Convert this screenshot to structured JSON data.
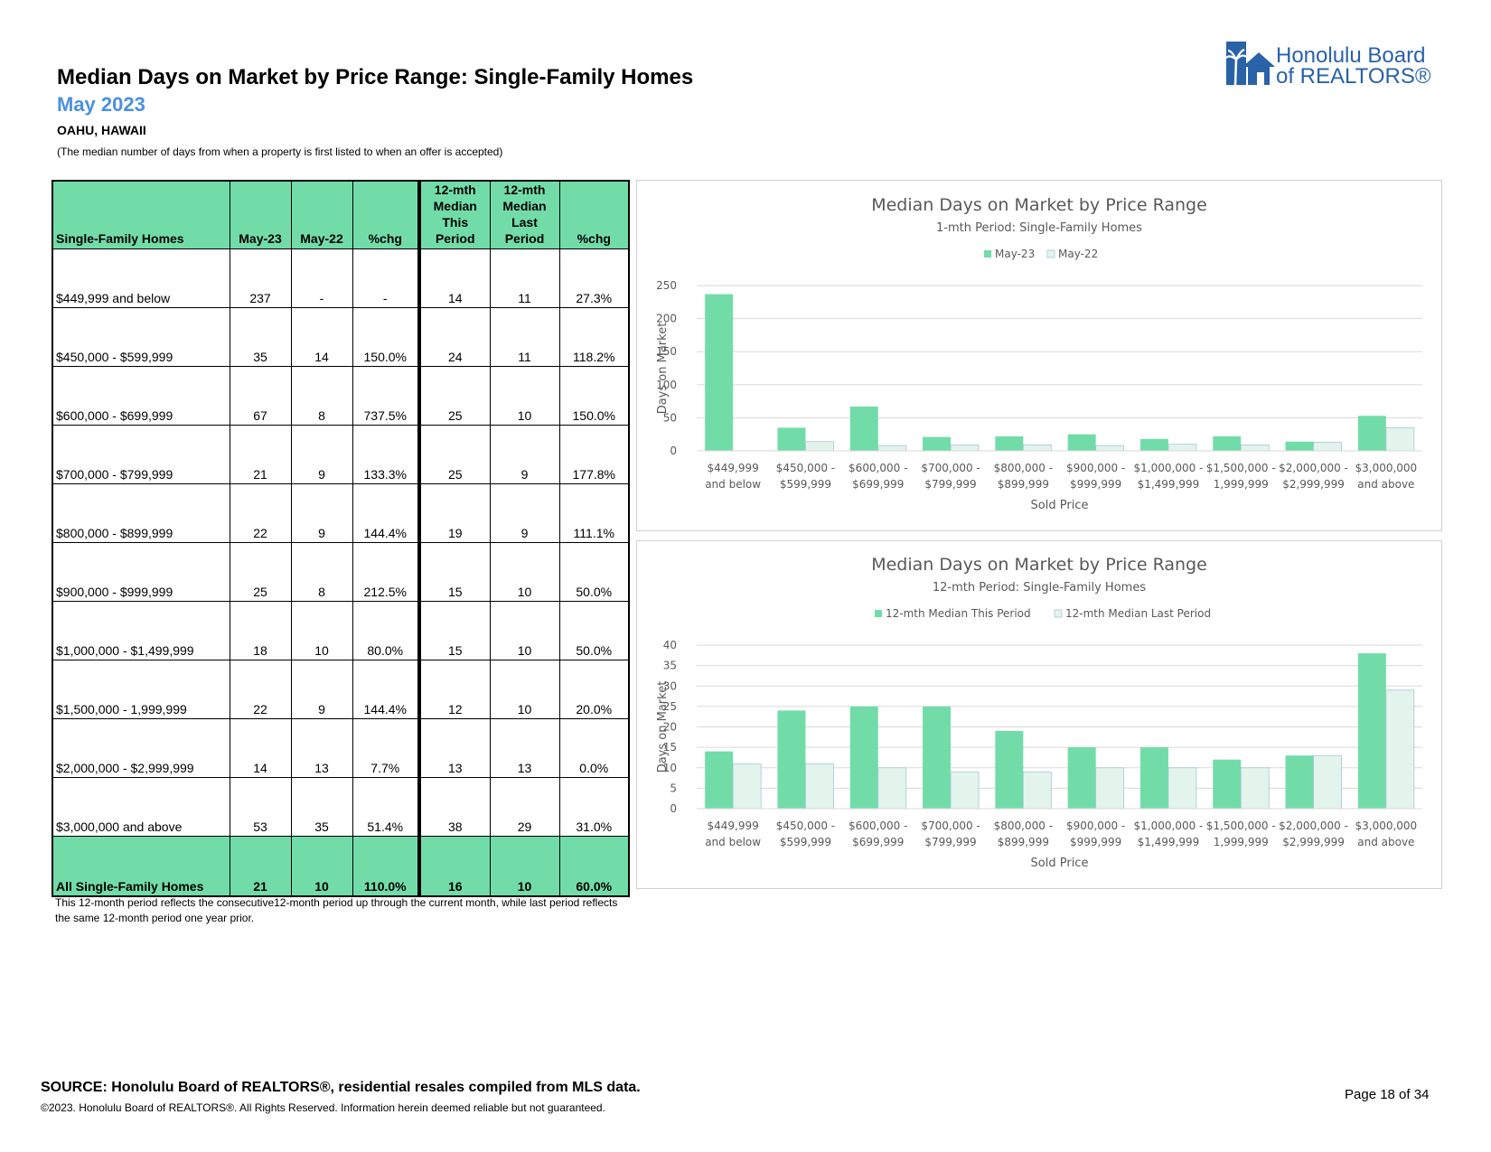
{
  "header": {
    "title": "Median Days on Market by Price Range: Single-Family Homes",
    "subtitle": "May 2023",
    "location": "OAHU, HAWAII",
    "description": "(The median number of days from when a property is first listed to when an offer is accepted)"
  },
  "logo": {
    "line1": "Honolulu Board",
    "line2": "of REALTORS®"
  },
  "table": {
    "headers": [
      "Single-Family Homes",
      "May-23",
      "May-22",
      "%chg",
      "12-mth Median This Period",
      "12-mth Median Last Period",
      "%chg"
    ],
    "rows": [
      [
        "$449,999 and below",
        "237",
        "-",
        "-",
        "14",
        "11",
        "27.3%"
      ],
      [
        "$450,000 - $599,999",
        "35",
        "14",
        "150.0%",
        "24",
        "11",
        "118.2%"
      ],
      [
        "$600,000 - $699,999",
        "67",
        "8",
        "737.5%",
        "25",
        "10",
        "150.0%"
      ],
      [
        "$700,000 - $799,999",
        "21",
        "9",
        "133.3%",
        "25",
        "9",
        "177.8%"
      ],
      [
        "$800,000 - $899,999",
        "22",
        "9",
        "144.4%",
        "19",
        "9",
        "111.1%"
      ],
      [
        "$900,000 - $999,999",
        "25",
        "8",
        "212.5%",
        "15",
        "10",
        "50.0%"
      ],
      [
        "$1,000,000 - $1,499,999",
        "18",
        "10",
        "80.0%",
        "15",
        "10",
        "50.0%"
      ],
      [
        "$1,500,000 - 1,999,999",
        "22",
        "9",
        "144.4%",
        "12",
        "10",
        "20.0%"
      ],
      [
        "$2,000,000 - $2,999,999",
        "14",
        "13",
        "7.7%",
        "13",
        "13",
        "0.0%"
      ],
      [
        "$3,000,000 and above",
        "53",
        "35",
        "51.4%",
        "38",
        "29",
        "31.0%"
      ]
    ],
    "total": [
      "All Single-Family Homes",
      "21",
      "10",
      "110.0%",
      "16",
      "10",
      "60.0%"
    ]
  },
  "footnote": "This 12-month period reflects the consecutive12-month period up through the current month, while last period reflects the same 12-month period one year prior.",
  "colors": {
    "accent": "#72dca9",
    "light_bar": "#e2f4ec",
    "light_bar_border": "#a9c6d8",
    "subtitle": "#4a90e2",
    "logo": "#2a62a8"
  },
  "chart_data": [
    {
      "type": "bar",
      "title": "Median Days on Market by Price Range",
      "subtitle": "1-mth Period: Single-Family Homes",
      "xlabel": "Sold Price",
      "ylabel": "Days on Market",
      "ylim": [
        0,
        250
      ],
      "yticks": [
        0,
        50,
        100,
        150,
        200,
        250
      ],
      "legend_position": "top",
      "categories": [
        [
          "$449,999",
          "and below"
        ],
        [
          "$450,000 -",
          "$599,999"
        ],
        [
          "$600,000 -",
          "$699,999"
        ],
        [
          "$700,000 -",
          "$799,999"
        ],
        [
          "$800,000 -",
          "$899,999"
        ],
        [
          "$900,000 -",
          "$999,999"
        ],
        [
          "$1,000,000 -",
          "$1,499,999"
        ],
        [
          "$1,500,000 -",
          "1,999,999"
        ],
        [
          "$2,000,000 -",
          "$2,999,999"
        ],
        [
          "$3,000,000",
          "and above"
        ]
      ],
      "series": [
        {
          "name": "May-23",
          "values": [
            237,
            35,
            67,
            21,
            22,
            25,
            18,
            22,
            14,
            53
          ]
        },
        {
          "name": "May-22",
          "values": [
            0,
            14,
            8,
            9,
            9,
            8,
            10,
            9,
            13,
            35
          ]
        }
      ]
    },
    {
      "type": "bar",
      "title": "Median Days on Market by Price Range",
      "subtitle": "12-mth Period: Single-Family Homes",
      "xlabel": "Sold Price",
      "ylabel": "Days on Market",
      "ylim": [
        0,
        40
      ],
      "yticks": [
        0,
        5,
        10,
        15,
        20,
        25,
        30,
        35,
        40
      ],
      "legend_position": "top",
      "categories": [
        [
          "$449,999",
          "and below"
        ],
        [
          "$450,000 -",
          "$599,999"
        ],
        [
          "$600,000 -",
          "$699,999"
        ],
        [
          "$700,000 -",
          "$799,999"
        ],
        [
          "$800,000 -",
          "$899,999"
        ],
        [
          "$900,000 -",
          "$999,999"
        ],
        [
          "$1,000,000 -",
          "$1,499,999"
        ],
        [
          "$1,500,000 -",
          "1,999,999"
        ],
        [
          "$2,000,000 -",
          "$2,999,999"
        ],
        [
          "$3,000,000",
          "and above"
        ]
      ],
      "series": [
        {
          "name": "12-mth Median This Period",
          "values": [
            14,
            24,
            25,
            25,
            19,
            15,
            15,
            12,
            13,
            38
          ]
        },
        {
          "name": "12-mth Median Last Period",
          "values": [
            11,
            11,
            10,
            9,
            9,
            10,
            10,
            10,
            13,
            29
          ]
        }
      ]
    }
  ],
  "footer": {
    "source": "SOURCE: Honolulu Board of REALTORS®, residential resales compiled from MLS data.",
    "copyright": "©2023. Honolulu Board of REALTORS®. All Rights Reserved. Information herein deemed reliable but not guaranteed.",
    "page": "Page 18 of 34"
  }
}
